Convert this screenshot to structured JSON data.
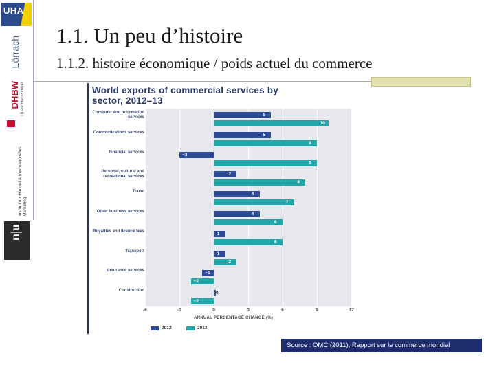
{
  "slide": {
    "title": "1.1. Un peu d’histoire",
    "subtitle": "1.1.2. histoire économique / poids actuel du commerce",
    "source": "Source : OMC (2011), Rapport sur le commerce mondial"
  },
  "sidebar": {
    "uha_logo_text": "UHA",
    "lorrach": "Lörrach",
    "dhbw": "DHBW",
    "dhbw_sub": "Duale Hochschule",
    "institute": "Institut für Handel & Internationales Marketing",
    "nu_logo": "n|u"
  },
  "colors": {
    "series_2012": "#2d4a94",
    "series_2013": "#23a7a9",
    "source_bg": "#1f2d6e",
    "chart_title": "#2c3e6c"
  },
  "chart_data": {
    "type": "bar",
    "orientation": "horizontal",
    "title": "World exports of commercial services by sector, 2012–13",
    "xlabel": "ANNUAL PERCENTAGE CHANGE (%)",
    "xlim": [
      -6,
      12
    ],
    "xticks": [
      "-6",
      "-3",
      "0",
      "3",
      "6",
      "9",
      "12"
    ],
    "grid": true,
    "legend_position": "bottom-left",
    "categories": [
      "Computer and information services",
      "Communications services",
      "Financial services",
      "Personal, cultural and recreational services",
      "Travel",
      "Other business services",
      "Royalties and licence fees",
      "Transport",
      "Insurance services",
      "Construction"
    ],
    "series": [
      {
        "name": "2012",
        "values": [
          5,
          5,
          -3,
          2,
          4,
          4,
          1,
          1,
          -1,
          0
        ]
      },
      {
        "name": "2013",
        "values": [
          10,
          9,
          9,
          8,
          7,
          6,
          6,
          2,
          -2,
          -2
        ]
      }
    ]
  }
}
